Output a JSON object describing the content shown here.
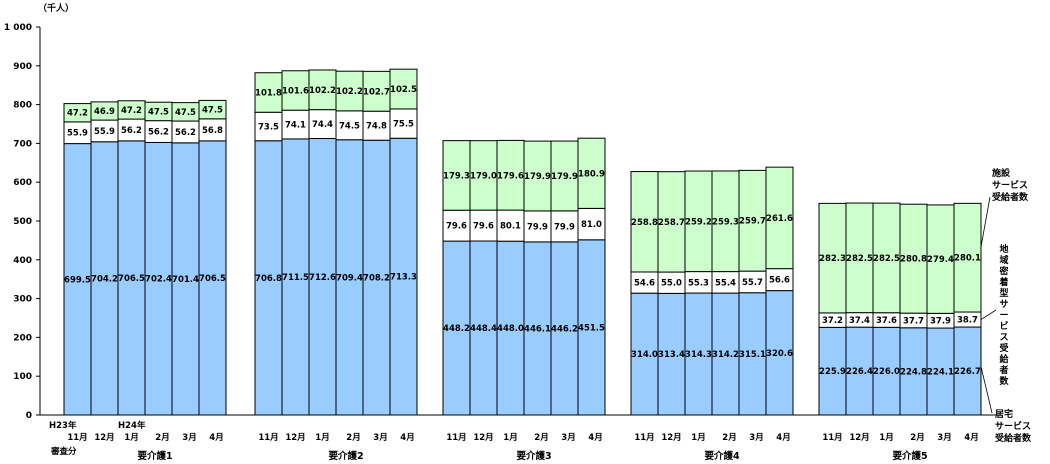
{
  "chart_data": {
    "type": "bar",
    "stacked": true,
    "unit": "（千人）",
    "ylim": [
      0,
      1000
    ],
    "yticks": [
      "0",
      "100",
      "200",
      "300",
      "400",
      "500",
      "600",
      "700",
      "800",
      "900",
      "1 000"
    ],
    "extra_labels": {
      "h23": "H23年",
      "shinsabun": "審査分",
      "h24": "H24年"
    },
    "groups": [
      {
        "name": "要介護1",
        "months": [
          "11月",
          "12月",
          "1月",
          "2月",
          "3月",
          "4月"
        ],
        "series": {
          "home": [
            699.5,
            704.2,
            706.5,
            702.4,
            701.4,
            706.5
          ],
          "community": [
            55.9,
            55.9,
            56.2,
            56.2,
            56.2,
            56.8
          ],
          "facility": [
            47.2,
            46.9,
            47.2,
            47.5,
            47.5,
            47.5
          ]
        }
      },
      {
        "name": "要介護2",
        "months": [
          "11月",
          "12月",
          "1月",
          "2月",
          "3月",
          "4月"
        ],
        "series": {
          "home": [
            706.8,
            711.5,
            712.6,
            709.4,
            708.2,
            713.3
          ],
          "community": [
            73.5,
            74.1,
            74.4,
            74.5,
            74.8,
            75.5
          ],
          "facility": [
            101.8,
            101.6,
            102.2,
            102.2,
            102.7,
            102.5
          ]
        }
      },
      {
        "name": "要介護3",
        "months": [
          "11月",
          "12月",
          "1月",
          "2月",
          "3月",
          "4月"
        ],
        "series": {
          "home": [
            448.2,
            448.4,
            448.0,
            446.1,
            446.2,
            451.5
          ],
          "community": [
            79.6,
            79.6,
            80.1,
            79.9,
            79.9,
            81.0
          ],
          "facility": [
            179.3,
            179.0,
            179.6,
            179.9,
            179.9,
            180.9
          ]
        }
      },
      {
        "name": "要介護4",
        "months": [
          "11月",
          "12月",
          "1月",
          "2月",
          "3月",
          "4月"
        ],
        "series": {
          "home": [
            314.0,
            313.4,
            314.3,
            314.2,
            315.1,
            320.6
          ],
          "community": [
            54.6,
            55.0,
            55.3,
            55.4,
            55.7,
            56.6
          ],
          "facility": [
            258.8,
            258.7,
            259.2,
            259.3,
            259.7,
            261.6
          ]
        }
      },
      {
        "name": "要介護5",
        "months": [
          "11月",
          "12月",
          "1月",
          "2月",
          "3月",
          "4月"
        ],
        "series": {
          "home": [
            225.9,
            226.4,
            226.0,
            224.8,
            224.1,
            226.7
          ],
          "community": [
            37.2,
            37.4,
            37.6,
            37.7,
            37.9,
            38.7
          ],
          "facility": [
            282.3,
            282.5,
            282.5,
            280.8,
            279.4,
            280.1
          ]
        }
      }
    ],
    "series_legend": {
      "facility": [
        "施設",
        "サービス",
        "受給者数"
      ],
      "community": "地域密着型サービス受給者数",
      "home": [
        "居宅",
        "サービス",
        "受給者数"
      ]
    },
    "colors": {
      "home": "#99ccff",
      "community": "#ffffff",
      "facility": "#ccffcc",
      "stroke": "#000000"
    }
  }
}
